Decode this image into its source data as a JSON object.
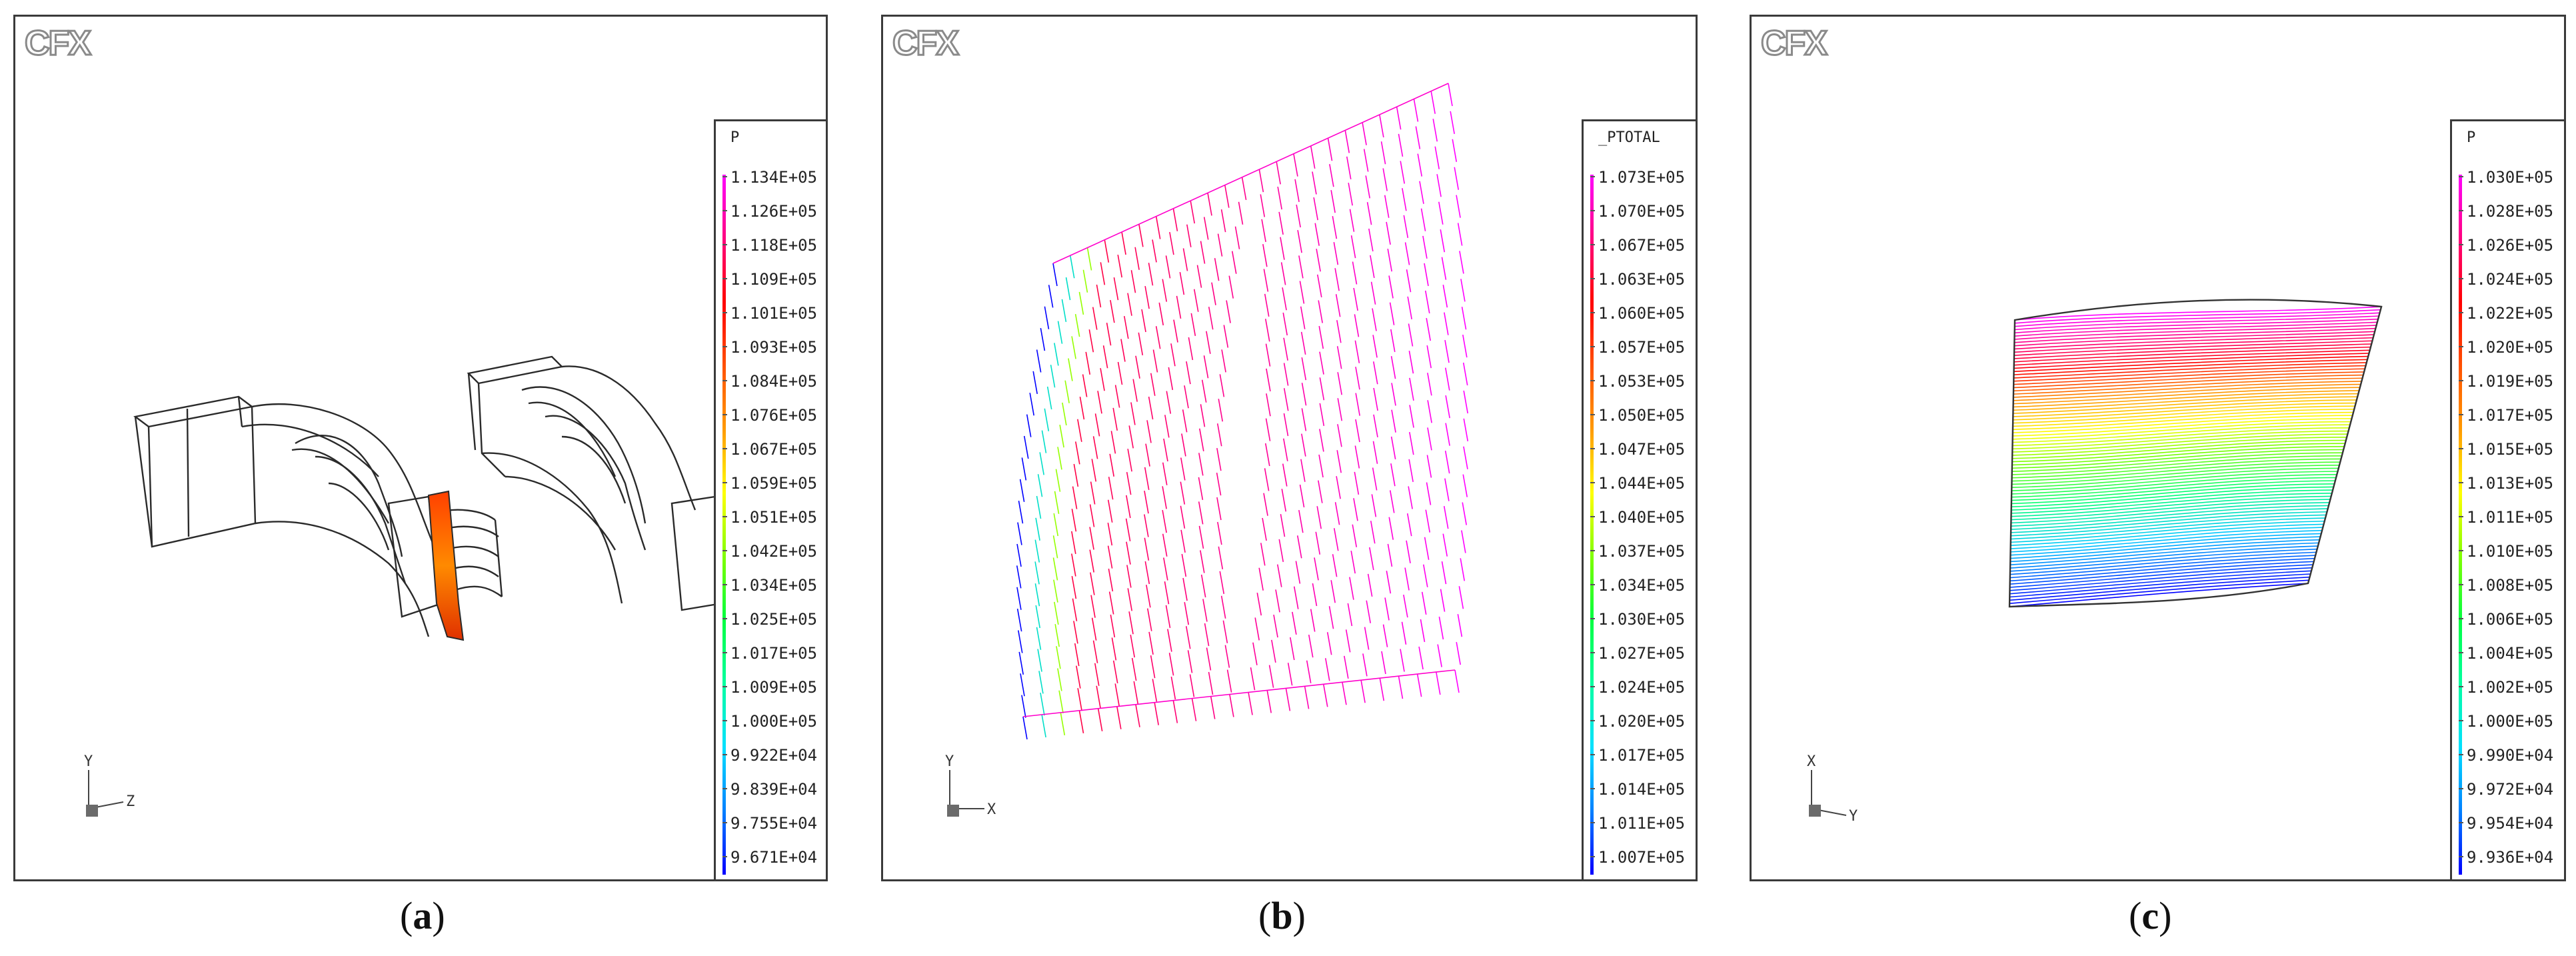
{
  "watermark": "CFX",
  "panels": [
    {
      "id": "a",
      "caption_open": "(",
      "caption_letter": "a",
      "caption_close": ")",
      "legend_variable": "P",
      "legend_values": [
        "1.134E+05",
        "1.126E+05",
        "1.118E+05",
        "1.109E+05",
        "1.101E+05",
        "1.093E+05",
        "1.084E+05",
        "1.076E+05",
        "1.067E+05",
        "1.059E+05",
        "1.051E+05",
        "1.042E+05",
        "1.034E+05",
        "1.025E+05",
        "1.017E+05",
        "1.009E+05",
        "1.000E+05",
        "9.922E+04",
        "9.839E+04",
        "9.755E+04",
        "9.671E+04"
      ],
      "axis_up": "Y",
      "axis_side": "Z"
    },
    {
      "id": "b",
      "caption_open": "(",
      "caption_letter": "b",
      "caption_close": ")",
      "legend_variable": "_PTOTAL",
      "legend_values": [
        "1.073E+05",
        "1.070E+05",
        "1.067E+05",
        "1.063E+05",
        "1.060E+05",
        "1.057E+05",
        "1.053E+05",
        "1.050E+05",
        "1.047E+05",
        "1.044E+05",
        "1.040E+05",
        "1.037E+05",
        "1.034E+05",
        "1.030E+05",
        "1.027E+05",
        "1.024E+05",
        "1.020E+05",
        "1.017E+05",
        "1.014E+05",
        "1.011E+05",
        "1.007E+05"
      ],
      "axis_up": "Y",
      "axis_side": "X"
    },
    {
      "id": "c",
      "caption_open": "(",
      "caption_letter": "c",
      "caption_close": ")",
      "legend_variable": "P",
      "legend_values": [
        "1.030E+05",
        "1.028E+05",
        "1.026E+05",
        "1.024E+05",
        "1.022E+05",
        "1.020E+05",
        "1.019E+05",
        "1.017E+05",
        "1.015E+05",
        "1.013E+05",
        "1.011E+05",
        "1.010E+05",
        "1.008E+05",
        "1.006E+05",
        "1.004E+05",
        "1.002E+05",
        "1.000E+05",
        "9.990E+04",
        "9.972E+04",
        "9.954E+04",
        "9.936E+04"
      ],
      "axis_up": "X",
      "axis_side": "Y"
    }
  ],
  "colors": {
    "frame": "#3a3a3a",
    "wireframe": "#2a2a2a",
    "rainbow_top": "#ff00ff",
    "rainbow_bottom": "#0000ff"
  }
}
